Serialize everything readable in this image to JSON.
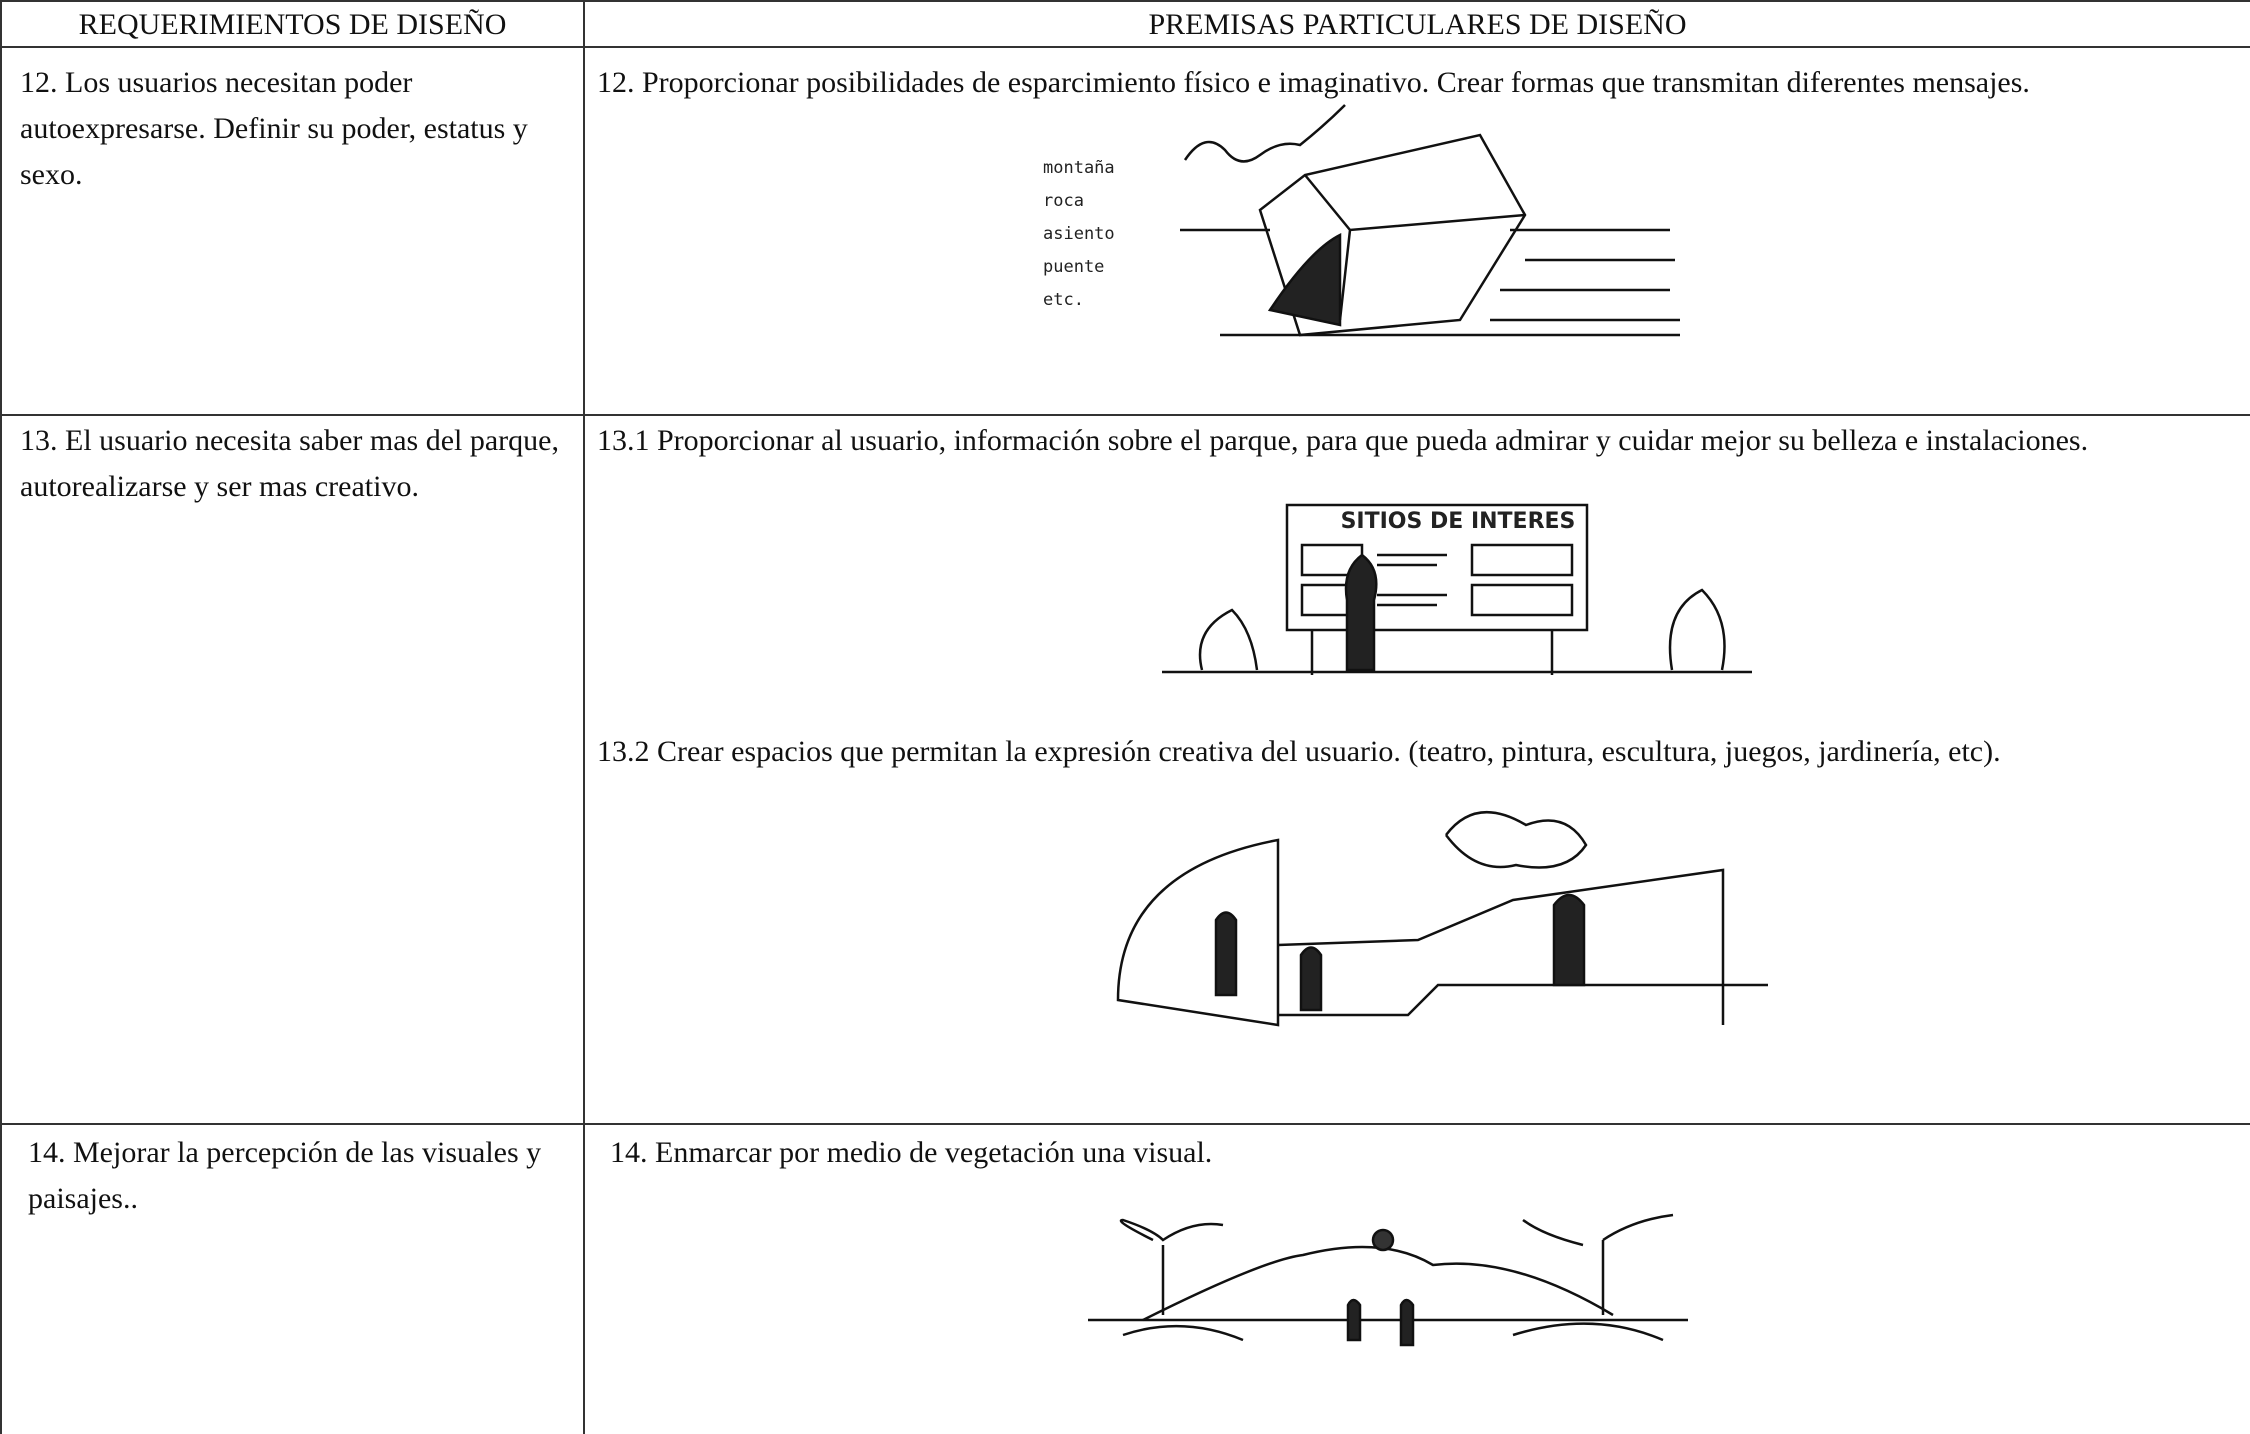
{
  "table": {
    "header": [
      "REQUERIMIENTOS DE DISEÑO",
      "PREMISAS PARTICULARES DE DISEÑO"
    ],
    "rows": [
      {
        "requirement": "12.  Los usuarios necesitan poder autoexpresarse.  Definir su poder, estatus y sexo.",
        "premises": [
          {
            "text": "12.  Proporcionar posibilidades de esparcimiento físico e imaginativo.  Crear formas que transmitan diferentes mensajes.",
            "sketch_labels": [
              "montaña",
              "roca",
              "asiento",
              "puente",
              "etc."
            ]
          }
        ]
      },
      {
        "requirement": "13.  El usuario necesita saber mas del parque, autorealizarse y ser mas creativo.",
        "premises": [
          {
            "text": "13.1  Proporcionar al usuario, información sobre el parque, para que pueda admirar y cuidar mejor su belleza e instalaciones.",
            "sketch_labels": [
              "SITIOS DE INTERES"
            ]
          },
          {
            "text": "13.2  Crear espacios que permitan la expresión creativa del usuario.  (teatro, pintura, escultura, juegos, jardinería, etc)."
          }
        ]
      },
      {
        "requirement": "14.  Mejorar la percepción de las visuales y paisajes..",
        "premises": [
          {
            "text": "14.  Enmarcar por medio de vegetación una visual."
          }
        ]
      }
    ]
  }
}
